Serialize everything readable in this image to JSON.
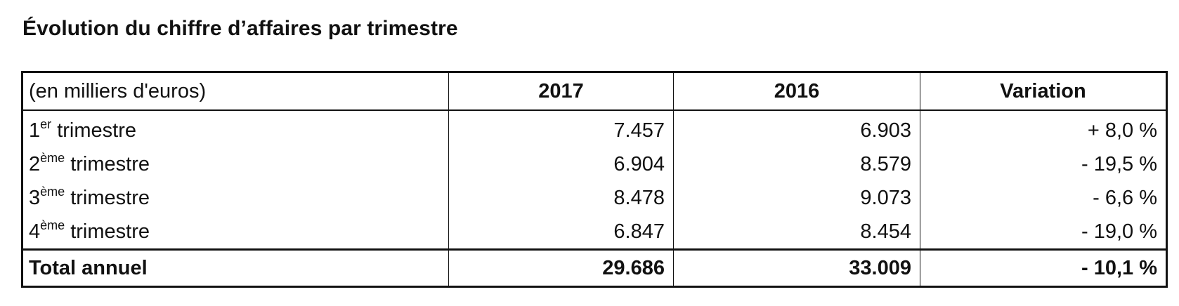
{
  "title": "Évolution du chiffre d’affaires par trimestre",
  "table": {
    "headers": [
      "(en milliers d'euros)",
      "2017",
      "2016",
      "Variation"
    ],
    "rows": [
      {
        "num": "1",
        "sup": "er",
        "suffix": " trimestre",
        "values": [
          "7.457",
          "6.903",
          "+ 8,0 %"
        ]
      },
      {
        "num": "2",
        "sup": "ème",
        "suffix": " trimestre",
        "values": [
          "6.904",
          "8.579",
          "- 19,5 %"
        ]
      },
      {
        "num": "3",
        "sup": "ème",
        "suffix": " trimestre",
        "values": [
          "8.478",
          "9.073",
          "- 6,6 %"
        ]
      },
      {
        "num": "4",
        "sup": "ème",
        "suffix": " trimestre",
        "values": [
          "6.847",
          "8.454",
          "- 19,0 %"
        ]
      }
    ],
    "total": {
      "label": "Total annuel",
      "values": [
        "29.686",
        "33.009",
        "- 10,1 %"
      ]
    }
  }
}
